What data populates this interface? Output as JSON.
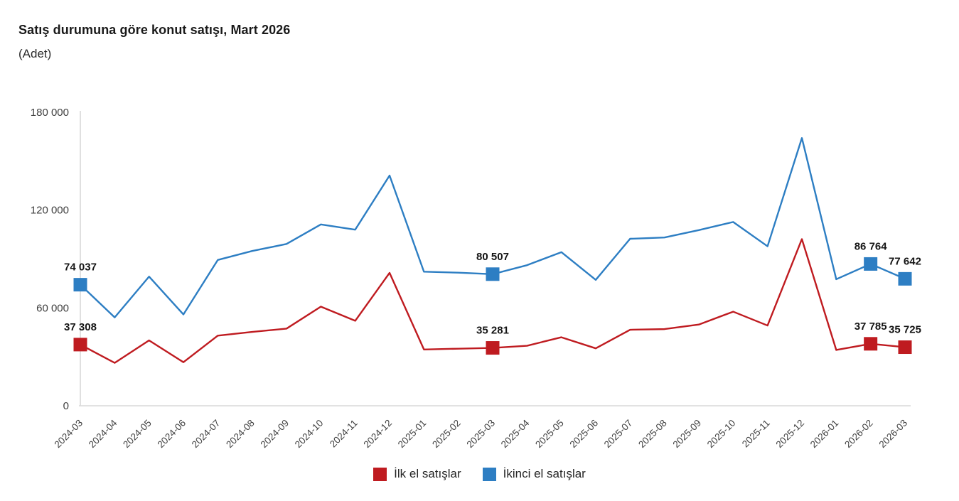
{
  "chart_data": {
    "type": "line",
    "title": "Satış durumuna göre konut satışı, Mart 2026",
    "subtitle": "(Adet)",
    "xlabel": "",
    "ylabel": "",
    "ylim": [
      0,
      180000
    ],
    "yticks": [
      0,
      60000,
      120000,
      180000
    ],
    "ytick_labels": [
      "0",
      "60 000",
      "120 000",
      "180 000"
    ],
    "grid": false,
    "legend_position": "bottom",
    "marker_shape": "square",
    "categories": [
      "2024-03",
      "2024-04",
      "2024-05",
      "2024-06",
      "2024-07",
      "2024-08",
      "2024-09",
      "2024-10",
      "2024-11",
      "2024-12",
      "2025-01",
      "2025-02",
      "2025-03",
      "2025-04",
      "2025-05",
      "2025-06",
      "2025-07",
      "2025-08",
      "2025-09",
      "2025-10",
      "2025-11",
      "2025-12",
      "2026-01",
      "2026-02",
      "2026-03"
    ],
    "series": [
      {
        "name": "İlk el satışlar",
        "color": "#bf1b20",
        "values": [
          37308,
          26100,
          39900,
          26500,
          42800,
          45100,
          47100,
          60600,
          51900,
          81300,
          34300,
          34800,
          35281,
          36600,
          41800,
          35000,
          46400,
          46800,
          49600,
          57500,
          49000,
          102000,
          34000,
          37785,
          35725
        ],
        "marked_points": [
          {
            "index": 0,
            "label": "37 308"
          },
          {
            "index": 12,
            "label": "35 281"
          },
          {
            "index": 23,
            "label": "37 785"
          },
          {
            "index": 24,
            "label": "35 725"
          }
        ]
      },
      {
        "name": "İkinci el satışlar",
        "color": "#2d7ec3",
        "values": [
          74037,
          54000,
          79000,
          55800,
          89200,
          94700,
          99000,
          111000,
          107800,
          141000,
          82000,
          81400,
          80507,
          86000,
          94000,
          77000,
          102200,
          103000,
          107500,
          112500,
          97600,
          164000,
          77400,
          86764,
          77642
        ],
        "marked_points": [
          {
            "index": 0,
            "label": "74 037"
          },
          {
            "index": 12,
            "label": "80 507"
          },
          {
            "index": 23,
            "label": "86 764"
          },
          {
            "index": 24,
            "label": "77 642"
          }
        ]
      }
    ],
    "axis_color": "#d9d9d9"
  }
}
